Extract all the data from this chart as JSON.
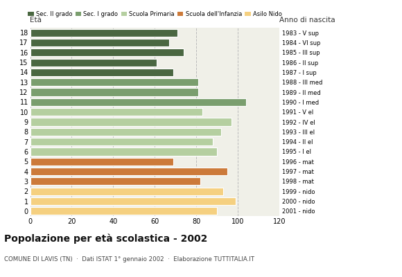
{
  "ages": [
    18,
    17,
    16,
    15,
    14,
    13,
    12,
    11,
    10,
    9,
    8,
    7,
    6,
    5,
    4,
    3,
    2,
    1,
    0
  ],
  "values": [
    71,
    67,
    74,
    61,
    69,
    81,
    81,
    104,
    83,
    97,
    92,
    88,
    90,
    69,
    95,
    82,
    93,
    99,
    90
  ],
  "right_labels": [
    "1983 - V sup",
    "1984 - VI sup",
    "1985 - III sup",
    "1986 - II sup",
    "1987 - I sup",
    "1988 - III med",
    "1989 - II med",
    "1990 - I med",
    "1991 - V el",
    "1992 - IV el",
    "1993 - III el",
    "1994 - II el",
    "1995 - I el",
    "1996 - mat",
    "1997 - mat",
    "1998 - mat",
    "1999 - nido",
    "2000 - nido",
    "2001 - nido"
  ],
  "colors": [
    "#4a6741",
    "#4a6741",
    "#4a6741",
    "#4a6741",
    "#4a6741",
    "#7a9e6e",
    "#7a9e6e",
    "#7a9e6e",
    "#b5cfa0",
    "#b5cfa0",
    "#b5cfa0",
    "#b5cfa0",
    "#b5cfa0",
    "#cc7a3a",
    "#cc7a3a",
    "#cc7a3a",
    "#f5d080",
    "#f5d080",
    "#f5d080"
  ],
  "legend_labels": [
    "Sec. II grado",
    "Sec. I grado",
    "Scuola Primaria",
    "Scuola dell'Infanzia",
    "Asilo Nido"
  ],
  "legend_colors": [
    "#4a6741",
    "#7a9e6e",
    "#b5cfa0",
    "#cc7a3a",
    "#f5d080"
  ],
  "title": "Popolazione per età scolastica - 2002",
  "subtitle": "COMUNE DI LAVIS (TN)  ·  Dati ISTAT 1° gennaio 2002  ·  Elaborazione TUTTITALIA.IT",
  "eta_label": "Età",
  "anno_label": "Anno di nascita",
  "xlim": [
    0,
    120
  ],
  "xticks": [
    0,
    20,
    40,
    60,
    80,
    100,
    120
  ],
  "bar_height": 0.78,
  "grid_color": "#bbbbbb",
  "background_color": "#ffffff",
  "plot_bg_color": "#f0f0e8"
}
